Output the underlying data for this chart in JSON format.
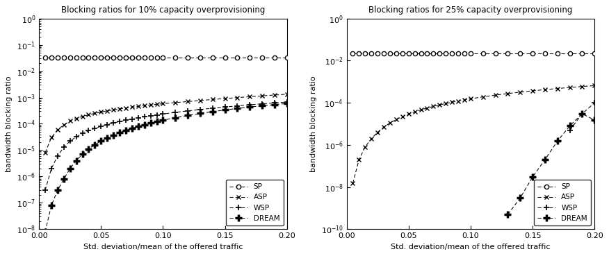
{
  "title_left": "Blocking ratios for 10% capacity overprovisioning",
  "title_right": "Blocking ratios for 25% capacity overprovisioning",
  "xlabel": "Std. deviation/mean of the offered traffic",
  "ylabel": "bandwidth blocking ratio",
  "x_values": [
    0.005,
    0.01,
    0.015,
    0.02,
    0.025,
    0.03,
    0.035,
    0.04,
    0.045,
    0.05,
    0.055,
    0.06,
    0.065,
    0.07,
    0.075,
    0.08,
    0.085,
    0.09,
    0.095,
    0.1,
    0.11,
    0.12,
    0.13,
    0.14,
    0.15,
    0.16,
    0.17,
    0.18,
    0.19,
    0.2
  ],
  "left": {
    "SP": [
      0.032,
      0.032,
      0.032,
      0.032,
      0.032,
      0.032,
      0.032,
      0.032,
      0.032,
      0.032,
      0.032,
      0.032,
      0.032,
      0.032,
      0.032,
      0.032,
      0.032,
      0.032,
      0.032,
      0.032,
      0.032,
      0.032,
      0.032,
      0.032,
      0.032,
      0.032,
      0.032,
      0.032,
      0.032,
      0.032
    ],
    "ASP": [
      8e-06,
      3e-05,
      6e-05,
      9e-05,
      0.00013,
      0.00016,
      0.00019,
      0.00022,
      0.00025,
      0.00028,
      0.00031,
      0.00034,
      0.00037,
      0.0004,
      0.00043,
      0.00046,
      0.00049,
      0.00052,
      0.00055,
      0.00058,
      0.00064,
      0.0007,
      0.00077,
      0.00084,
      0.00091,
      0.00099,
      0.00107,
      0.00115,
      0.00124,
      0.00133
    ],
    "WSP": [
      3e-07,
      2e-06,
      6e-06,
      1.3e-05,
      2.2e-05,
      3.2e-05,
      4.3e-05,
      5.5e-05,
      6.7e-05,
      8e-05,
      9.3e-05,
      0.000107,
      0.000121,
      0.000136,
      0.000151,
      0.000167,
      0.000183,
      0.0002,
      0.000217,
      0.000235,
      0.000272,
      0.00031,
      0.00035,
      0.000392,
      0.000435,
      0.00048,
      0.000526,
      0.000574,
      0.000623,
      0.000674
    ],
    "DREAM": [
      8e-09,
      8e-08,
      3e-07,
      8e-07,
      2e-06,
      4e-06,
      7e-06,
      1.1e-05,
      1.6e-05,
      2.2e-05,
      2.9e-05,
      3.7e-05,
      4.6e-05,
      5.6e-05,
      6.7e-05,
      7.9e-05,
      9.2e-05,
      0.000106,
      0.000121,
      0.000137,
      0.000171,
      0.000208,
      0.000248,
      0.000291,
      0.000336,
      0.000384,
      0.000433,
      0.000484,
      0.000537,
      0.000591
    ]
  },
  "right": {
    "SP": [
      0.022,
      0.022,
      0.022,
      0.022,
      0.022,
      0.022,
      0.022,
      0.022,
      0.022,
      0.022,
      0.022,
      0.022,
      0.022,
      0.022,
      0.022,
      0.022,
      0.022,
      0.022,
      0.022,
      0.022,
      0.022,
      0.022,
      0.022,
      0.022,
      0.022,
      0.022,
      0.022,
      0.022,
      0.022,
      0.022
    ],
    "ASP": [
      1.5e-08,
      2e-07,
      8e-07,
      2e-06,
      4e-06,
      7e-06,
      1.1e-05,
      1.6e-05,
      2.2e-05,
      2.9e-05,
      3.7e-05,
      4.6e-05,
      5.6e-05,
      6.7e-05,
      7.9e-05,
      9.2e-05,
      0.000106,
      0.000121,
      0.000137,
      0.000154,
      0.000191,
      0.00023,
      0.000273,
      0.000319,
      0.000368,
      0.00042,
      0.000474,
      0.000531,
      0.00059,
      0.000652
    ],
    "WSP": [
      null,
      null,
      null,
      null,
      null,
      null,
      null,
      null,
      null,
      null,
      null,
      null,
      null,
      null,
      null,
      null,
      null,
      null,
      null,
      null,
      null,
      null,
      null,
      null,
      null,
      null,
      null,
      5e-06,
      3e-05,
      0.0001
    ],
    "DREAM": [
      null,
      null,
      null,
      null,
      null,
      null,
      null,
      null,
      null,
      null,
      null,
      null,
      null,
      null,
      null,
      null,
      null,
      null,
      null,
      null,
      null,
      null,
      5e-10,
      3e-09,
      3e-08,
      2e-07,
      1.5e-06,
      8e-06,
      3e-05,
      1.5e-05
    ]
  },
  "xlim_left": [
    0,
    0.2
  ],
  "xlim_right": [
    0,
    0.2
  ],
  "ylim_left": [
    1e-08,
    1.0
  ],
  "ylim_right": [
    1e-10,
    1.0
  ],
  "background_color": "#ffffff",
  "line_color": "#000000",
  "xticks": [
    0,
    0.05,
    0.1,
    0.15,
    0.2
  ]
}
